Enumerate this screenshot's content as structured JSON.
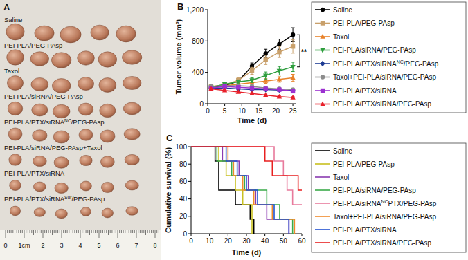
{
  "photo": {
    "title": "A",
    "groups": [
      {
        "label": "Saline",
        "count": 5
      },
      {
        "label": "PEI-PLA/PEG-PAsp",
        "count": 6
      },
      {
        "label": "Taxol",
        "count": 6
      },
      {
        "label": "PEI-PLA/siRNA/PEG-PAsp",
        "count": 6
      },
      {
        "label": "PEI-PLA/PTX/siRNANC/PEG-PAsp",
        "superscript": "NC",
        "count": 6
      },
      {
        "label": "PEI-PLA/siRNA/PEG-PAsp+Taxol",
        "count": 6
      },
      {
        "label": "PEI-PLA/PTX/siRNA",
        "count": 6
      },
      {
        "label": "PEI-PLA/PTX/siRNASur/PEG-PAsp",
        "superscript": "Sur",
        "count": 6
      }
    ],
    "ruler": [
      "0",
      "1cm",
      "2",
      "3",
      "4",
      "5",
      "6",
      "7",
      "8"
    ]
  },
  "chart_data": [
    {
      "type": "line",
      "title": "B",
      "x_label": "Time (d)",
      "y_label": "Tumor volume (mm³)",
      "x": [
        1,
        5,
        9,
        13,
        17,
        21,
        25
      ],
      "xlim": [
        0,
        26
      ],
      "xticks": [
        0,
        5,
        10,
        15,
        20,
        25
      ],
      "ylim": [
        0,
        1200
      ],
      "yticks": [
        0,
        400,
        800,
        {
          "value": 1200,
          "label": "1,200"
        }
      ],
      "grid": false,
      "legend": "right",
      "annotation": "**",
      "series": [
        {
          "name": "Saline",
          "color": "#000000",
          "marker": "circle",
          "values": [
            210,
            230,
            290,
            480,
            640,
            760,
            880
          ],
          "error": [
            20,
            25,
            30,
            40,
            55,
            65,
            90
          ]
        },
        {
          "name": "PEI-PLA/PEG-PAsp",
          "color": "#c9a06b",
          "marker": "square",
          "values": [
            220,
            240,
            300,
            420,
            560,
            660,
            730
          ],
          "error": [
            20,
            20,
            30,
            45,
            60,
            70,
            85
          ]
        },
        {
          "name": "Taxol",
          "color": "#e8822a",
          "marker": "triangle",
          "values": [
            220,
            230,
            250,
            270,
            290,
            310,
            330
          ],
          "error": [
            15,
            20,
            20,
            25,
            30,
            35,
            45
          ]
        },
        {
          "name": "PEI-PLA/siRNA/PEG-PAsp",
          "color": "#2e9e3e",
          "marker": "triangle-down",
          "values": [
            210,
            250,
            280,
            300,
            360,
            420,
            470
          ],
          "error": [
            20,
            20,
            25,
            30,
            45,
            55,
            60
          ]
        },
        {
          "name": "PEI-PLA/PTX/siRNANC/PEG-PAsp",
          "superscript": "NC",
          "color": "#1f3c94",
          "marker": "diamond",
          "values": [
            200,
            200,
            190,
            180,
            180,
            175,
            170
          ],
          "error": [
            15,
            15,
            15,
            15,
            15,
            15,
            15
          ]
        },
        {
          "name": "Taxol+PEI-PLA/siRNA/PEG-PAsp",
          "color": "#8c8c8c",
          "marker": "circle",
          "values": [
            220,
            230,
            230,
            220,
            200,
            190,
            180
          ],
          "error": [
            15,
            15,
            15,
            20,
            20,
            20,
            20
          ]
        },
        {
          "name": "PEI-PLA/PTX/siRNA",
          "color": "#9b30d0",
          "marker": "square",
          "values": [
            200,
            220,
            210,
            200,
            190,
            180,
            160
          ],
          "error": [
            15,
            15,
            15,
            15,
            15,
            15,
            15
          ]
        },
        {
          "name": "PEI-PLA/PTX/siRNA/PEG-PAsp",
          "color": "#e8202a",
          "marker": "triangle",
          "values": [
            190,
            170,
            150,
            130,
            110,
            90,
            80
          ],
          "error": [
            10,
            10,
            10,
            10,
            10,
            10,
            10
          ]
        }
      ]
    },
    {
      "type": "line",
      "line_style": "step",
      "title": "C",
      "x_label": "Time (d)",
      "y_label": "Cumulative survival (%)",
      "xlim": [
        0,
        60
      ],
      "xticks": [
        0,
        10,
        20,
        30,
        40,
        50,
        60
      ],
      "ylim": [
        0,
        100
      ],
      "yticks": [
        0,
        20,
        40,
        60,
        80,
        100
      ],
      "grid": false,
      "legend": "right",
      "series": [
        {
          "name": "Saline",
          "color": "#000000",
          "x": [
            0,
            13,
            15,
            24,
            32,
            34
          ],
          "values": [
            100,
            83.3,
            50,
            33.3,
            16.7,
            0
          ]
        },
        {
          "name": "PEI-PLA/PEG-PAsp",
          "color": "#c8c020",
          "x": [
            0,
            15,
            19,
            24,
            28,
            33
          ],
          "values": [
            100,
            83.3,
            66.7,
            50,
            33.3,
            0
          ]
        },
        {
          "name": "Taxol",
          "color": "#8a3ab0",
          "x": [
            0,
            17,
            26,
            31,
            35,
            41,
            53
          ],
          "values": [
            100,
            83.3,
            66.7,
            50,
            33.3,
            16.7,
            0
          ]
        },
        {
          "name": "PEI-PLA/siRNA/PEG-PAsp",
          "color": "#3aaa4a",
          "x": [
            0,
            14,
            22,
            29,
            41,
            48,
            55
          ],
          "values": [
            100,
            83.3,
            66.7,
            50,
            33.3,
            16.7,
            0
          ]
        },
        {
          "name": "PEI-PLA/siRNANCPTX/PEG-PAsp",
          "superscript": "NC",
          "color": "#e87a9c",
          "x": [
            0,
            45,
            50,
            52,
            55,
            60
          ],
          "values": [
            100,
            83.3,
            66.7,
            50,
            33.3,
            33.3
          ]
        },
        {
          "name": "Taxol+PEI-PLA/siRNA/PEG-PAsp",
          "color": "#f08a2a",
          "x": [
            0,
            20,
            23,
            28,
            34,
            44,
            56
          ],
          "values": [
            100,
            83.3,
            66.7,
            50,
            33.3,
            16.7,
            0
          ]
        },
        {
          "name": "PEI-PLA/PTX/siRNA",
          "color": "#2050d0",
          "x": [
            0,
            19,
            25,
            30,
            36,
            45,
            53
          ],
          "values": [
            100,
            83.3,
            66.7,
            50,
            33.3,
            16.7,
            0
          ]
        },
        {
          "name": "PEI-PLA/PTX/siRNA/PEG-PAsp",
          "color": "#e82020",
          "x": [
            0,
            40,
            44,
            58,
            60
          ],
          "values": [
            100,
            83.3,
            66.7,
            50,
            50
          ]
        }
      ]
    }
  ]
}
